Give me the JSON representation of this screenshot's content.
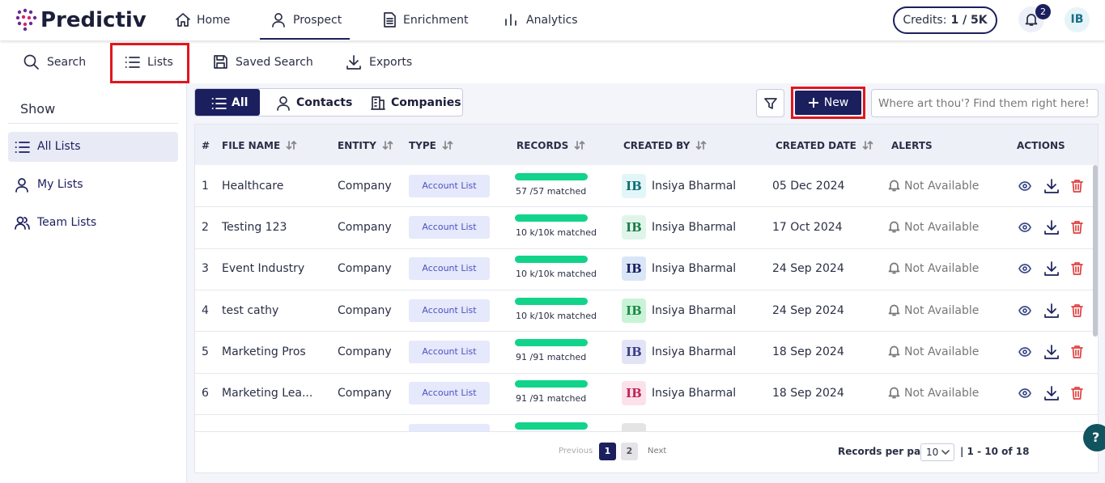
{
  "nav": {
    "logo": "Predictiv",
    "tabs": [
      "Home",
      "Prospect",
      "Enrichment",
      "Analytics"
    ],
    "credits_label": "Credits:",
    "credits_value": "1 / 5K",
    "notifications": "2",
    "avatar": "IB"
  },
  "subnav": [
    "Search",
    "Lists",
    "Saved Search",
    "Exports"
  ],
  "sidebar": {
    "title": "Show",
    "items": [
      "All Lists",
      "My Lists",
      "Team Lists"
    ]
  },
  "toolbar": {
    "filters": [
      "All",
      "Contacts",
      "Companies"
    ],
    "new_button": "New",
    "search_placeholder": "Where art thou'? Find them right here!"
  },
  "table": {
    "columns": [
      "#",
      "FILE NAME",
      "ENTITY",
      "TYPE",
      "RECORDS",
      "CREATED BY",
      "CREATED DATE",
      "ALERTS",
      "ACTIONS"
    ],
    "rows": [
      {
        "index": 1,
        "file_name": "Healthcare",
        "entity": "Company",
        "type": "Account List",
        "records": "57 /57 matched",
        "initials": "IB",
        "created_by": "Insiya Bharmal",
        "created_date": "05 Dec 2024",
        "alerts": "Not Available",
        "avatar_color": "#e2f6f8",
        "avatar_text_color": "#0f6d75"
      },
      {
        "index": 2,
        "file_name": "Testing 123",
        "entity": "Company",
        "type": "Account List",
        "records": "10 k/10k matched",
        "initials": "IB",
        "created_by": "Insiya Bharmal",
        "created_date": "17 Oct 2024",
        "alerts": "Not Available",
        "avatar_color": "#e0f5ea",
        "avatar_text_color": "#1d7a4a"
      },
      {
        "index": 3,
        "file_name": "Event Industry",
        "entity": "Company",
        "type": "Account List",
        "records": "10 k/10k matched",
        "initials": "IB",
        "created_by": "Insiya Bharmal",
        "created_date": "24 Sep 2024",
        "alerts": "Not Available",
        "avatar_color": "#d9e6f7",
        "avatar_text_color": "#1b1f5e"
      },
      {
        "index": 4,
        "file_name": "test cathy",
        "entity": "Company",
        "type": "Account List",
        "records": "10 k/10k matched",
        "initials": "IB",
        "created_by": "Insiya Bharmal",
        "created_date": "24 Sep 2024",
        "alerts": "Not Available",
        "avatar_color": "#c9f3d6",
        "avatar_text_color": "#1d8a4a"
      },
      {
        "index": 5,
        "file_name": "Marketing Pros",
        "entity": "Company",
        "type": "Account List",
        "records": "91 /91 matched",
        "initials": "IB",
        "created_by": "Insiya Bharmal",
        "created_date": "18 Sep 2024",
        "alerts": "Not Available",
        "avatar_color": "#e2e4f6",
        "avatar_text_color": "#3b3f8a"
      },
      {
        "index": 6,
        "file_name": "Marketing Lea...",
        "entity": "Company",
        "type": "Account List",
        "records": "91 /91 matched",
        "initials": "IB",
        "created_by": "Insiya Bharmal",
        "created_date": "18 Sep 2024",
        "alerts": "Not Available",
        "avatar_color": "#fce1ea",
        "avatar_text_color": "#c0245a"
      }
    ]
  },
  "pagination": {
    "previous": "Previous",
    "pages": [
      "1",
      "2"
    ],
    "next": "Next",
    "per_page_label": "Records per page:",
    "per_page": "10",
    "range": "| 1 - 10 of 18"
  }
}
